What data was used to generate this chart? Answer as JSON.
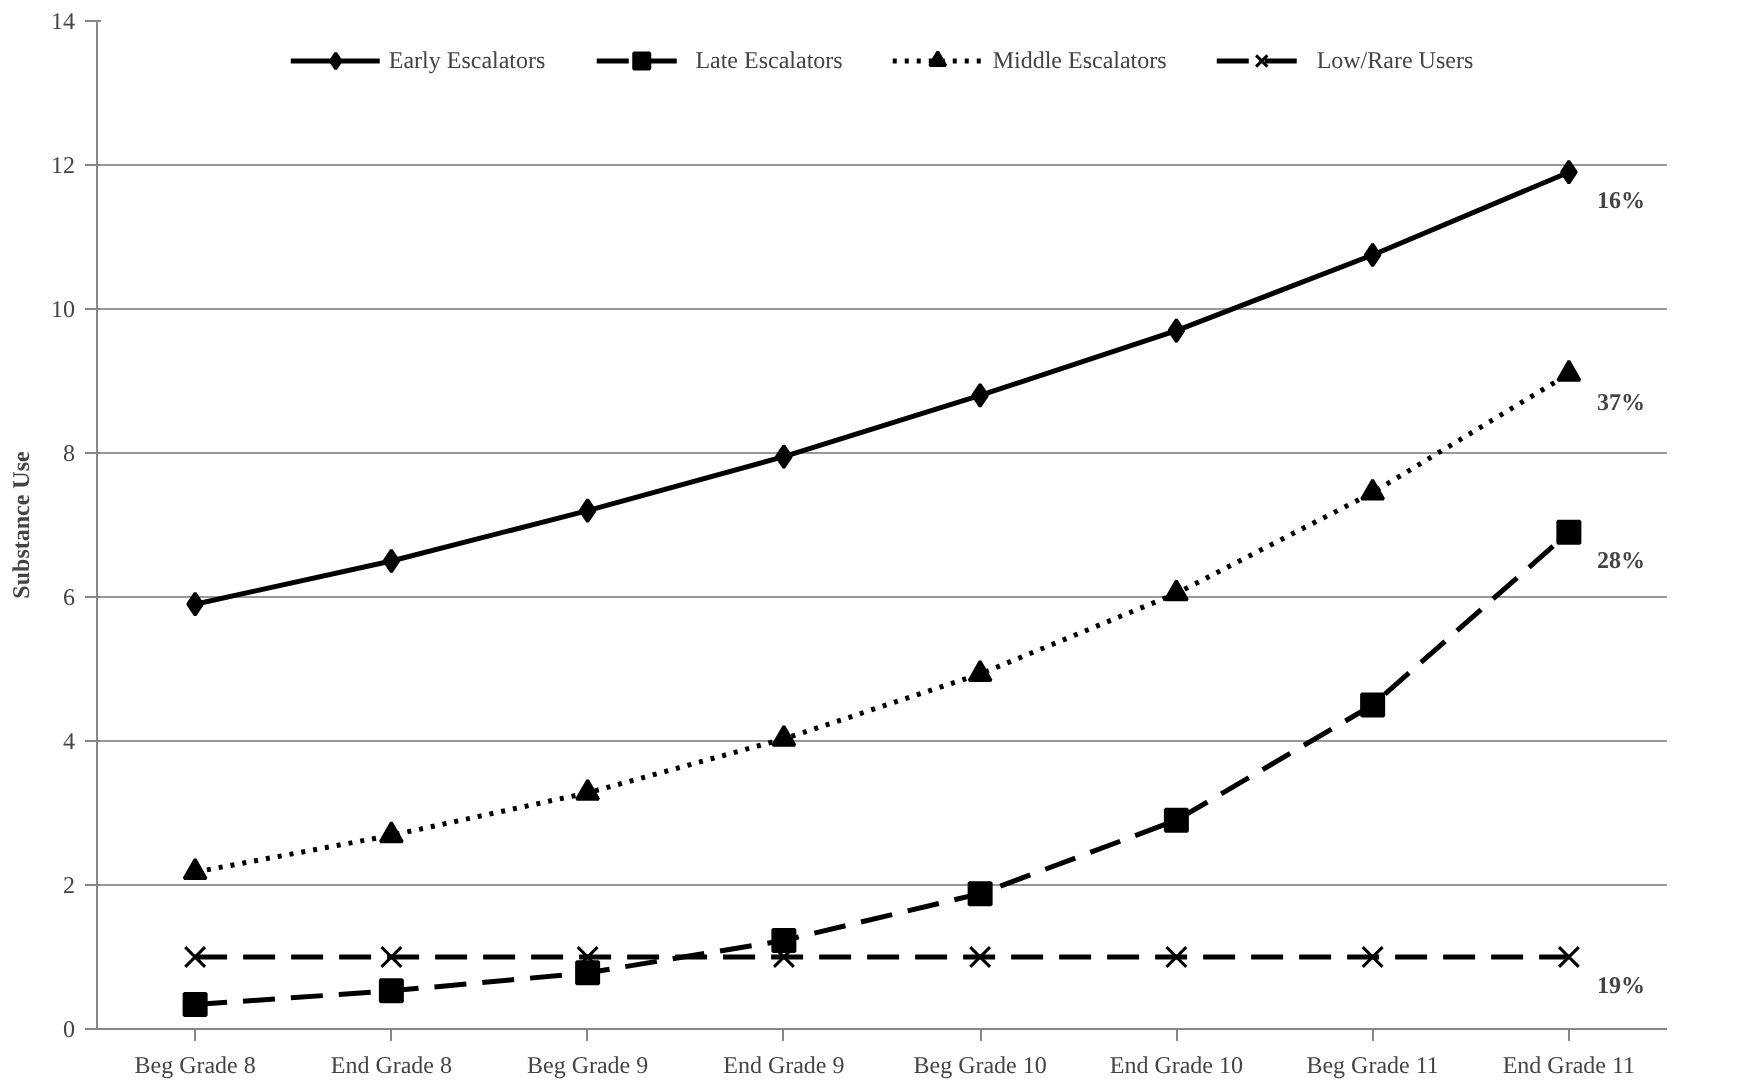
{
  "chart_data": {
    "type": "line",
    "ylabel": "Substance Use",
    "categories": [
      "Beg Grade 8",
      "End Grade 8",
      "Beg Grade 9",
      "End Grade 9",
      "Beg Grade 10",
      "End Grade 10",
      "Beg Grade 11",
      "End Grade 11"
    ],
    "series": [
      {
        "name": "Early Escalators",
        "color": "#000000",
        "marker": "diamond",
        "line_style": "solid",
        "values": [
          5.9,
          6.5,
          7.2,
          7.95,
          8.8,
          9.7,
          10.75,
          11.9
        ]
      },
      {
        "name": "Late Escalators",
        "color": "#000000",
        "marker": "square",
        "line_style": "dashed",
        "values": [
          0.34,
          0.53,
          0.78,
          1.23,
          1.88,
          2.9,
          4.5,
          6.9
        ]
      },
      {
        "name": "Middle Escalators",
        "color": "#000000",
        "marker": "triangle",
        "line_style": "dotted",
        "values": [
          2.18,
          2.69,
          3.28,
          4.03,
          4.93,
          6.05,
          7.45,
          9.1
        ]
      },
      {
        "name": "Low/Rare Users",
        "color": "#000000",
        "marker": "cross",
        "line_style": "dashed",
        "values": [
          1,
          1,
          1,
          1,
          1,
          1,
          1,
          1
        ]
      }
    ],
    "annotations": [
      "16%",
      "28%",
      "37%",
      "19%"
    ],
    "ylim": [
      0,
      14
    ],
    "yticks": [
      0,
      2,
      4,
      6,
      8,
      10,
      12,
      14
    ],
    "grid": "y",
    "legend": "top"
  }
}
